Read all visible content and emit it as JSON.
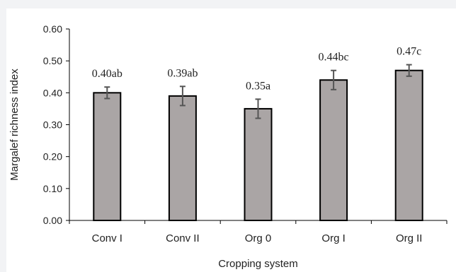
{
  "chart_data": {
    "type": "bar",
    "categories": [
      "Conv I",
      "Conv II",
      "Org 0",
      "Org I",
      "Org II"
    ],
    "values": [
      0.4,
      0.39,
      0.35,
      0.44,
      0.47
    ],
    "errors": [
      0.018,
      0.03,
      0.03,
      0.03,
      0.018
    ],
    "data_labels": [
      "0.40ab",
      "0.39ab",
      "0.35a",
      "0.44bc",
      "0.47c"
    ],
    "title": "",
    "xlabel": "Cropping system",
    "ylabel": "Margalef richness index",
    "ylim": [
      0,
      0.6
    ],
    "yticks": [
      0.0,
      0.1,
      0.2,
      0.3,
      0.4,
      0.5,
      0.6
    ],
    "ytick_labels": [
      "0.00",
      "0.10",
      "0.20",
      "0.30",
      "0.40",
      "0.50",
      "0.60"
    ],
    "grid": false,
    "legend": "none",
    "bar_color": "#aaa5a5",
    "bar_edge_color": "#000000",
    "error_bar_color": "#555555"
  }
}
